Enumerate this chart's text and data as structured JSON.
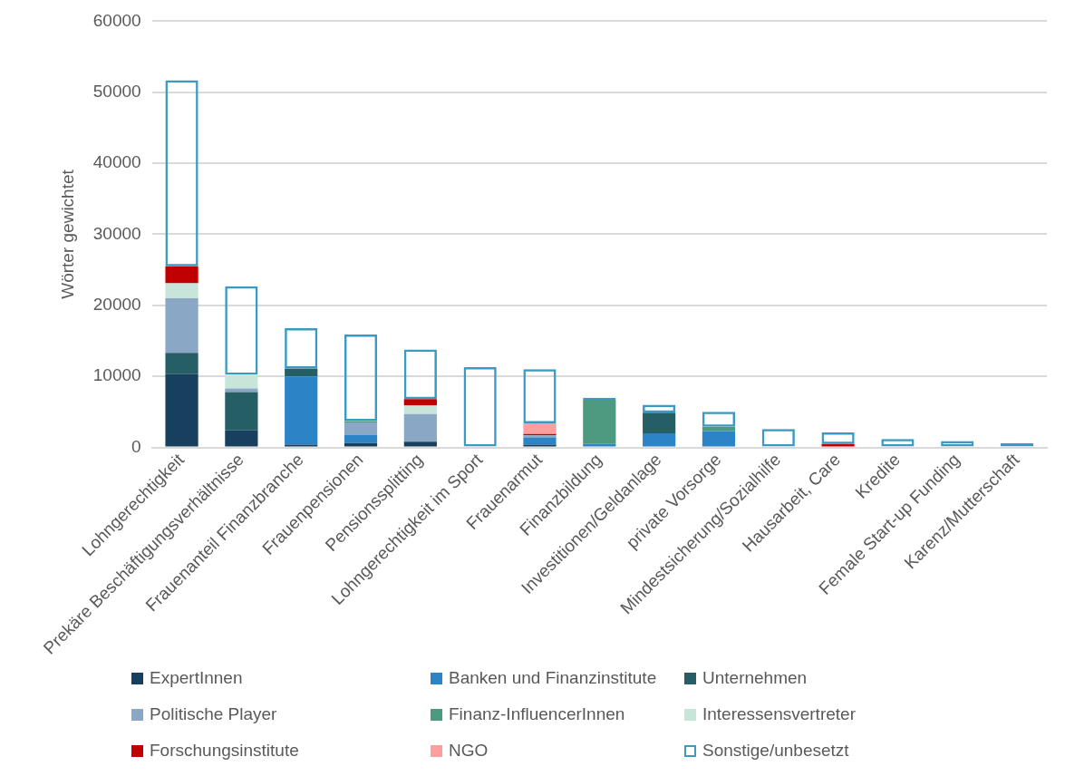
{
  "chart_data": {
    "type": "bar",
    "stacked": true,
    "ylabel": "Wörter gewichtet",
    "categories": [
      "Lohngerechtigkeit",
      "Prekäre Beschäftigungsverhältnisse",
      "Frauenanteil Finanzbranche",
      "Frauenpensionen",
      "Pensionssplitting",
      "Lohngerechtigkeit im Sport",
      "Frauenarmut",
      "Finanzbildung",
      "Investitionen/Geldanlage",
      "private Vorsorge",
      "Mindestsicherung/Sozialhilfe",
      "Hausarbeit, Care",
      "Kredite",
      "Female Start-up Funding",
      "Karenz/Mutterschaft"
    ],
    "series": [
      {
        "name": "ExpertInnen",
        "color": "#17405f",
        "values": [
          10300,
          2400,
          400,
          600,
          800,
          0,
          400,
          0,
          0,
          0,
          0,
          0,
          0,
          0,
          0
        ]
      },
      {
        "name": "Banken und Finanzinstitute",
        "color": "#2b84c6",
        "values": [
          0,
          0,
          9600,
          1200,
          0,
          0,
          1000,
          500,
          2000,
          2300,
          0,
          0,
          0,
          0,
          0
        ]
      },
      {
        "name": "Unternehmen",
        "color": "#265e66",
        "values": [
          3000,
          5400,
          1100,
          0,
          0,
          0,
          0,
          0,
          2900,
          0,
          0,
          0,
          0,
          0,
          0
        ]
      },
      {
        "name": "Politische Player",
        "color": "#8aa8c5",
        "values": [
          7700,
          500,
          0,
          1700,
          3900,
          0,
          300,
          0,
          0,
          0,
          0,
          0,
          0,
          0,
          0
        ]
      },
      {
        "name": "Finanz-InfluencerInnen",
        "color": "#4e9a80",
        "values": [
          0,
          0,
          0,
          200,
          0,
          0,
          0,
          6200,
          0,
          600,
          0,
          0,
          0,
          0,
          0
        ]
      },
      {
        "name": "Interessensvertreter",
        "color": "#c8e5da",
        "values": [
          2100,
          1900,
          0,
          0,
          1200,
          0,
          0,
          0,
          0,
          0,
          0,
          0,
          0,
          0,
          0
        ]
      },
      {
        "name": "Forschungsinstitute",
        "color": "#c00000",
        "values": [
          2400,
          0,
          0,
          0,
          900,
          0,
          200,
          0,
          0,
          0,
          0,
          500,
          0,
          0,
          0
        ]
      },
      {
        "name": "NGO",
        "color": "#ff9e9e",
        "values": [
          0,
          0,
          0,
          0,
          0,
          0,
          1500,
          0,
          0,
          0,
          0,
          0,
          0,
          0,
          0
        ]
      },
      {
        "name": "Sonstige/unbesetzt",
        "color": "#3b9ac1",
        "values": [
          26200,
          12500,
          5700,
          12200,
          7000,
          11300,
          7600,
          300,
          1100,
          2100,
          2600,
          1600,
          1200,
          900,
          600
        ]
      }
    ],
    "ylim": [
      0,
      60000
    ],
    "yticks": [
      0,
      10000,
      20000,
      30000,
      40000,
      50000,
      60000
    ],
    "grid": "y",
    "legend": "bottom"
  }
}
